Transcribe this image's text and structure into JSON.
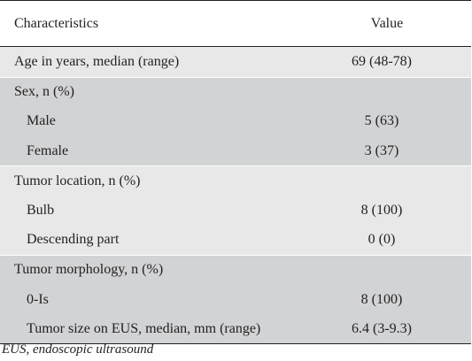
{
  "table": {
    "headers": {
      "characteristic": "Characteristics",
      "value": "Value"
    },
    "rows": [
      {
        "label": "Age in years, median (range)",
        "value": "69 (48-78)"
      },
      {
        "label": "Sex, n (%)",
        "value": ""
      },
      {
        "label": "Male",
        "value": "5 (63)"
      },
      {
        "label": "Female",
        "value": "3 (37)"
      },
      {
        "label": "Tumor location, n (%)",
        "value": ""
      },
      {
        "label": "Bulb",
        "value": "8 (100)"
      },
      {
        "label": "Descending part",
        "value": "0 (0)"
      },
      {
        "label": "Tumor morphology, n (%)",
        "value": ""
      },
      {
        "label": "0-Is",
        "value": "8 (100)"
      },
      {
        "label": "Tumor size on EUS, median, mm (range)",
        "value": "6.4 (3-9.3)"
      }
    ]
  },
  "footnote": "EUS, endoscopic ultrasound"
}
